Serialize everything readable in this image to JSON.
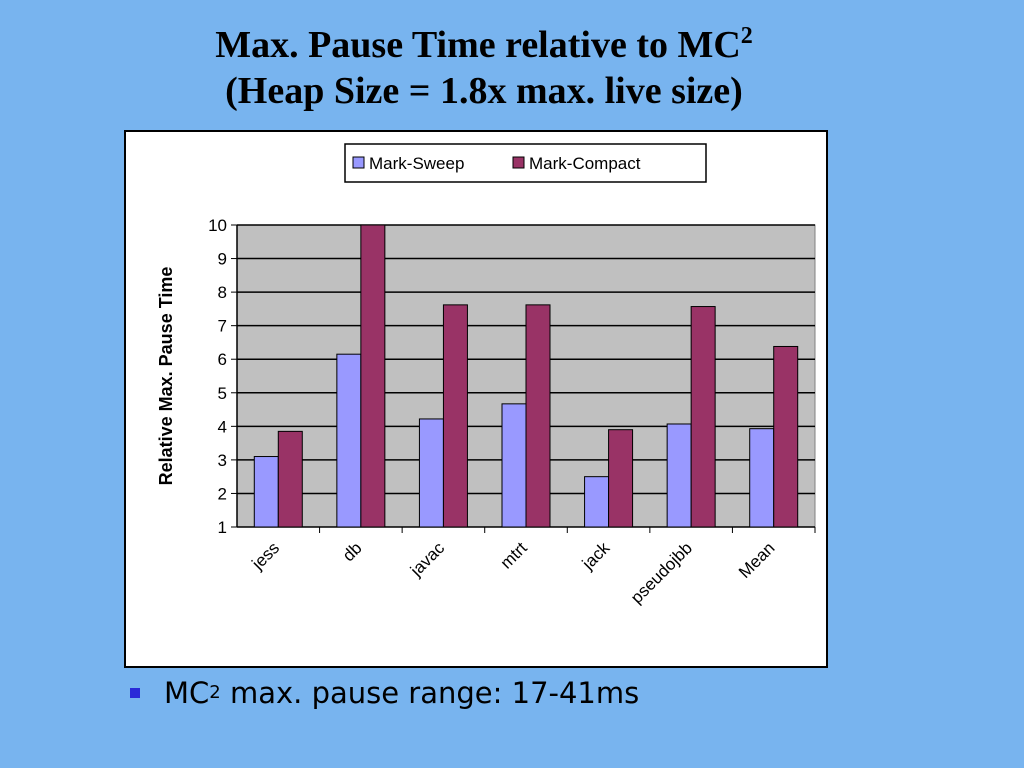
{
  "slide": {
    "title_line1": "Max. Pause Time relative to MC",
    "title_sup": "2",
    "title_line2": "(Heap Size = 1.8x max. live size)"
  },
  "bullet": {
    "prefix": "MC",
    "sup": "2",
    "text": " max. pause range: 17-41ms"
  },
  "colors": {
    "background": "#78b4ef",
    "plot_area": "#c0c0c0",
    "mark_sweep": "#9999ff",
    "mark_compact": "#993366",
    "bullet": "#2a2ad8"
  },
  "chart_data": {
    "type": "bar",
    "categories": [
      "jess",
      "db",
      "javac",
      "mtrt",
      "jack",
      "pseudojbb",
      "Mean"
    ],
    "series": [
      {
        "name": "Mark-Sweep",
        "values": [
          3.1,
          6.15,
          4.22,
          4.67,
          2.5,
          4.07,
          3.93
        ]
      },
      {
        "name": "Mark-Compact",
        "values": [
          3.85,
          10.0,
          7.62,
          7.62,
          3.9,
          7.57,
          6.38
        ]
      }
    ],
    "title": "",
    "xlabel": "",
    "ylabel": "Relative Max. Pause Time",
    "ylim": [
      1,
      10
    ],
    "yticks": [
      1,
      2,
      3,
      4,
      5,
      6,
      7,
      8,
      9,
      10
    ],
    "grid": true,
    "legend": "top"
  }
}
